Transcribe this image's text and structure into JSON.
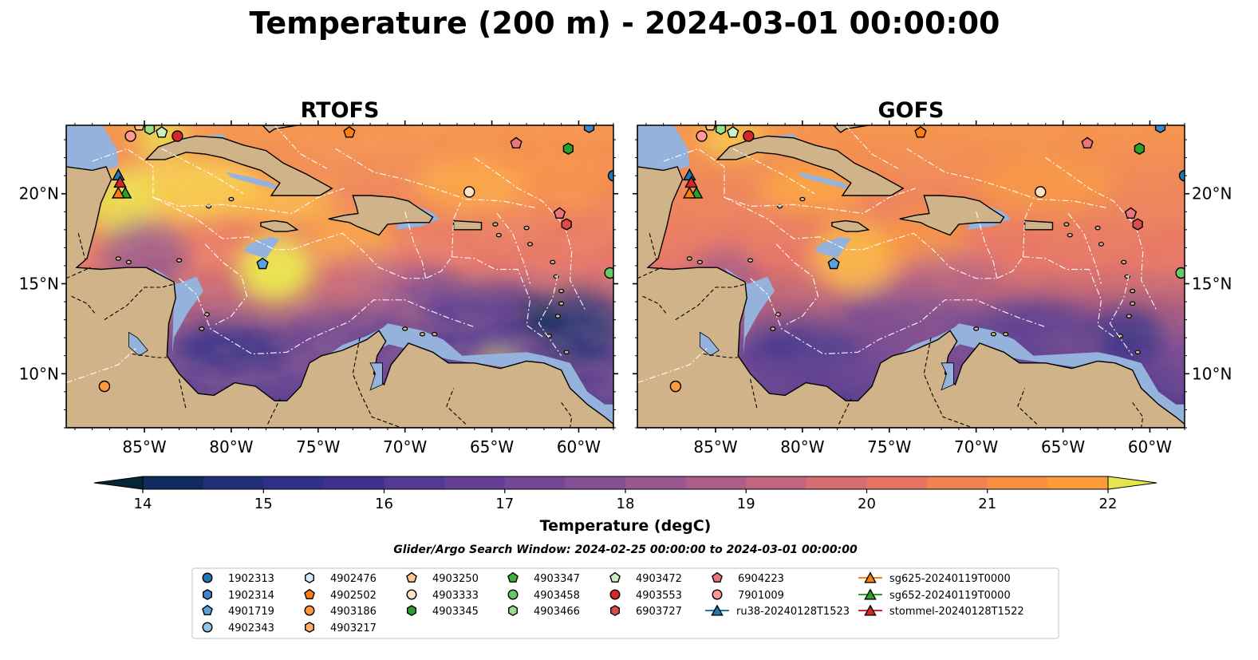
{
  "figure": {
    "title": "Temperature (200 m) - 2024-03-01 00:00:00",
    "search_window": "Glider/Argo Search Window: 2024-02-25 00:00:00 to 2024-03-01 00:00:00"
  },
  "panels": [
    {
      "title": "RTOFS",
      "model": "rtofs"
    },
    {
      "title": "GOFS",
      "model": "gofs"
    }
  ],
  "map_extent": {
    "lon_min": -89.5,
    "lon_max": -58.0,
    "lat_min": 7.0,
    "lat_max": 23.8
  },
  "longitude_ticks": [
    {
      "lon": -85,
      "label": "85°W"
    },
    {
      "lon": -80,
      "label": "80°W"
    },
    {
      "lon": -75,
      "label": "75°W"
    },
    {
      "lon": -70,
      "label": "70°W"
    },
    {
      "lon": -65,
      "label": "65°W"
    },
    {
      "lon": -60,
      "label": "60°W"
    }
  ],
  "latitude_ticks": [
    {
      "lat": 20,
      "label": "20°N"
    },
    {
      "lat": 15,
      "label": "15°N"
    },
    {
      "lat": 10,
      "label": "10°N"
    }
  ],
  "colorbar": {
    "label": "Temperature (degC)",
    "vmin": 14,
    "vmax": 22,
    "step": 0.5,
    "extend": "both",
    "ticks": [
      14,
      15,
      16,
      17,
      18,
      19,
      20,
      21,
      22
    ],
    "colors": [
      "#06243a",
      "#0f2b5e",
      "#202f78",
      "#302f8a",
      "#3e3190",
      "#523a94",
      "#634095",
      "#744795",
      "#854f93",
      "#995790",
      "#ad5e88",
      "#c26580",
      "#d66d72",
      "#e67562",
      "#f08254",
      "#f88f44",
      "#fb9b3c",
      "#fdac3d",
      "#fbbd42",
      "#f7d14a",
      "#e9e44e"
    ]
  },
  "colors": {
    "land": "#d1b38a",
    "shelf": "#95b2dc",
    "deep_cold": "#06243a",
    "eez_line": "#ffffff"
  },
  "legend": {
    "items": [
      {
        "label": "1902313",
        "marker": "circle",
        "color": "#1f77b4"
      },
      {
        "label": "1902314",
        "marker": "hexagon",
        "color": "#3d87c8"
      },
      {
        "label": "4901719",
        "marker": "pentagon",
        "color": "#5aa0dc"
      },
      {
        "label": "4902343",
        "marker": "circle",
        "color": "#8cc4ea"
      },
      {
        "label": "4902476",
        "marker": "hexagon",
        "color": "#d6eaf8"
      },
      {
        "label": "4902502",
        "marker": "pentagon",
        "color": "#ff7f0e"
      },
      {
        "label": "4903186",
        "marker": "circle",
        "color": "#ff9a3a"
      },
      {
        "label": "4903217",
        "marker": "hexagon",
        "color": "#ffb066"
      },
      {
        "label": "4903250",
        "marker": "pentagon",
        "color": "#ffc68f"
      },
      {
        "label": "4903333",
        "marker": "circle",
        "color": "#ffe1c4"
      },
      {
        "label": "4903345",
        "marker": "hexagon",
        "color": "#2ca02c"
      },
      {
        "label": "4903347",
        "marker": "pentagon",
        "color": "#3cb43c"
      },
      {
        "label": "4903458",
        "marker": "circle",
        "color": "#67c867"
      },
      {
        "label": "4903466",
        "marker": "hexagon",
        "color": "#98df8a"
      },
      {
        "label": "4903472",
        "marker": "pentagon",
        "color": "#c9f0c0"
      },
      {
        "label": "4903553",
        "marker": "circle",
        "color": "#d62728"
      },
      {
        "label": "6903727",
        "marker": "hexagon",
        "color": "#df4a4a"
      },
      {
        "label": "6904223",
        "marker": "pentagon",
        "color": "#e8767a"
      },
      {
        "label": "7901009",
        "marker": "circle",
        "color": "#ff9896"
      },
      {
        "label": "ru38-20240128T1523",
        "marker": "triangle-line",
        "color": "#1f77b4"
      },
      {
        "label": "sg625-20240119T0000",
        "marker": "triangle-line",
        "color": "#ff7f0e"
      },
      {
        "label": "sg652-20240119T0000",
        "marker": "triangle-line",
        "color": "#2ca02c"
      },
      {
        "label": "stommel-20240128T1522",
        "marker": "triangle-line",
        "color": "#d62728"
      }
    ]
  },
  "platforms": [
    {
      "id": "1902313",
      "marker": "circle",
      "color": "#1f77b4",
      "lon": -58.0,
      "lat": 21.0
    },
    {
      "id": "1902314",
      "marker": "hexagon",
      "color": "#3d87c8",
      "lon": -59.4,
      "lat": 23.7
    },
    {
      "id": "4901719",
      "marker": "pentagon",
      "color": "#5aa0dc",
      "lon": -78.2,
      "lat": 16.1
    },
    {
      "id": "4903186",
      "marker": "circle",
      "color": "#ff9a3a",
      "lon": -87.3,
      "lat": 9.3
    },
    {
      "id": "4902502",
      "marker": "pentagon",
      "color": "#ff7f0e",
      "lon": -73.2,
      "lat": 23.4
    },
    {
      "id": "4903250",
      "marker": "pentagon",
      "color": "#ffc68f",
      "lon": -85.3,
      "lat": 23.8
    },
    {
      "id": "4903333",
      "marker": "circle",
      "color": "#ffe1c4",
      "lon": -66.3,
      "lat": 20.1
    },
    {
      "id": "4903345",
      "marker": "hexagon",
      "color": "#2ca02c",
      "lon": -60.6,
      "lat": 22.5
    },
    {
      "id": "4903458",
      "marker": "circle",
      "color": "#67c867",
      "lon": -58.2,
      "lat": 15.6
    },
    {
      "id": "4903466",
      "marker": "hexagon",
      "color": "#98df8a",
      "lon": -84.7,
      "lat": 23.6
    },
    {
      "id": "4903472",
      "marker": "pentagon",
      "color": "#c9f0c0",
      "lon": -84.0,
      "lat": 23.4
    },
    {
      "id": "4903553",
      "marker": "circle",
      "color": "#d62728",
      "lon": -83.1,
      "lat": 23.2
    },
    {
      "id": "6903727",
      "marker": "hexagon",
      "color": "#df4a4a",
      "lon": -60.7,
      "lat": 18.3
    },
    {
      "id": "6904223",
      "marker": "pentagon",
      "color": "#e8767a",
      "lon": -61.1,
      "lat": 18.9
    },
    {
      "id": "6904223-b",
      "marker": "pentagon",
      "color": "#e8767a",
      "lon": -63.6,
      "lat": 22.8
    },
    {
      "id": "7901009",
      "marker": "circle",
      "color": "#ff9896",
      "lon": -85.8,
      "lat": 23.2
    },
    {
      "id": "ru38-20240128T1523",
      "marker": "triangle",
      "color": "#1f77b4",
      "lon": -86.5,
      "lat": 21.0
    },
    {
      "id": "stommel-20240128T1522",
      "marker": "triangle",
      "color": "#d62728",
      "lon": -86.4,
      "lat": 20.6
    },
    {
      "id": "sg652-20240119T0000",
      "marker": "triangle",
      "color": "#2ca02c",
      "lon": -86.1,
      "lat": 20.0
    },
    {
      "id": "sg625-20240119T0000",
      "marker": "triangle",
      "color": "#ff7f0e",
      "lon": -86.5,
      "lat": 20.0
    }
  ]
}
